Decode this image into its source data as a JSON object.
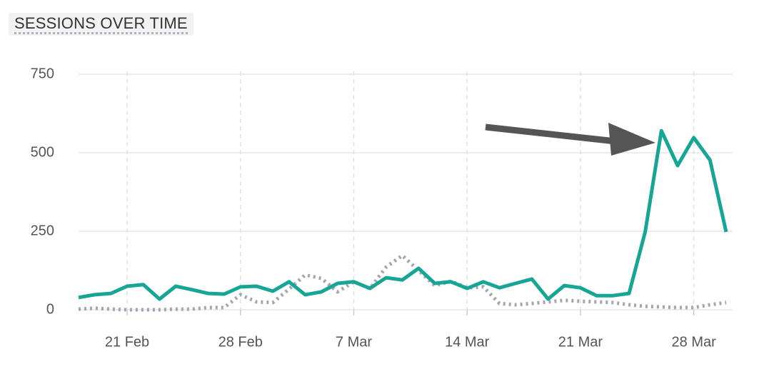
{
  "chart_data": {
    "type": "line",
    "title": "SESSIONS OVER TIME",
    "categories": [
      null,
      null,
      null,
      "21 Feb",
      null,
      null,
      null,
      null,
      null,
      null,
      "28 Feb",
      null,
      null,
      null,
      null,
      null,
      null,
      "7 Mar",
      null,
      null,
      null,
      null,
      null,
      null,
      "14 Mar",
      null,
      null,
      null,
      null,
      null,
      null,
      "21 Mar",
      null,
      null,
      null,
      null,
      null,
      null,
      "28 Mar",
      null,
      null
    ],
    "series": [
      {
        "color": "#17a596",
        "dash": false,
        "values": [
          39,
          48,
          52,
          75,
          80,
          34,
          75,
          64,
          52,
          50,
          73,
          75,
          59,
          89,
          48,
          57,
          84,
          89,
          68,
          102,
          95,
          132,
          84,
          89,
          68,
          89,
          70,
          84,
          98,
          34,
          77,
          70,
          45,
          45,
          52,
          248,
          570,
          459,
          548,
          477,
          248
        ]
      },
      {
        "color": "#a2a6b3",
        "dash": true,
        "values": [
          2,
          5,
          2,
          0,
          0,
          0,
          2,
          2,
          7,
          7,
          48,
          25,
          23,
          66,
          111,
          100,
          57,
          89,
          68,
          136,
          173,
          125,
          77,
          91,
          70,
          73,
          20,
          16,
          20,
          25,
          30,
          27,
          25,
          23,
          16,
          11,
          9,
          7,
          7,
          16,
          23
        ]
      }
    ],
    "ylim": [
      0,
      750
    ],
    "yticks": [
      0,
      250,
      500,
      750
    ],
    "grid": true
  }
}
